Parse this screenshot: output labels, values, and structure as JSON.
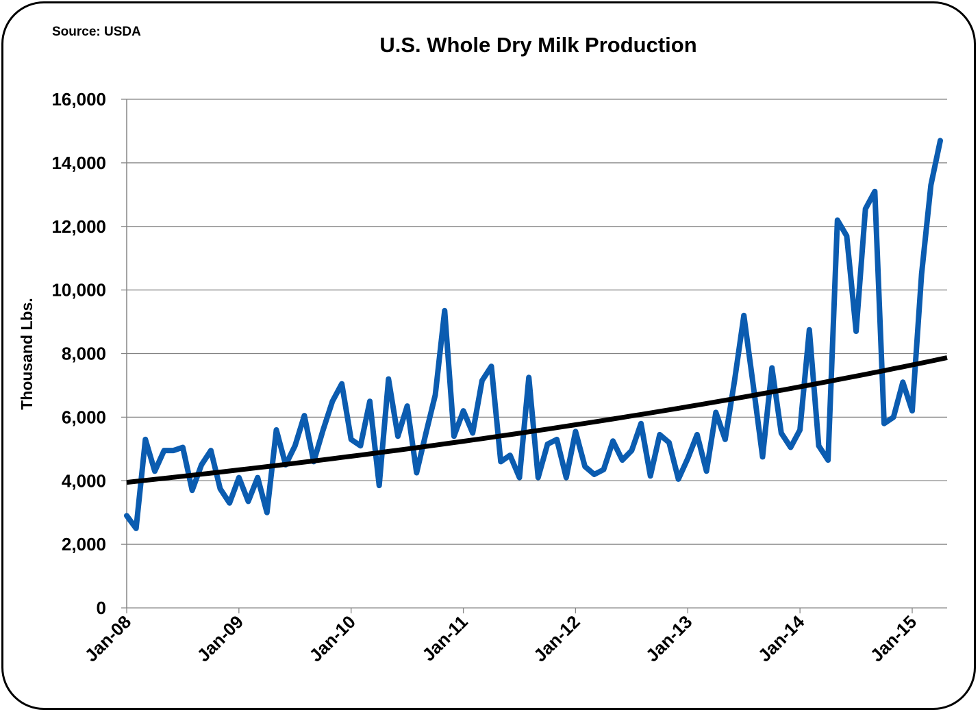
{
  "chart_data": {
    "type": "line",
    "title": "U.S. Whole Dry Milk Production",
    "source_note": "Source: USDA",
    "xlabel": "",
    "ylabel": "Thousand Lbs.",
    "ylim": [
      0,
      16000
    ],
    "yticks": [
      "0",
      "2,000",
      "4,000",
      "6,000",
      "8,000",
      "10,000",
      "12,000",
      "14,000",
      "16,000"
    ],
    "ytick_values": [
      0,
      2000,
      4000,
      6000,
      8000,
      10000,
      12000,
      14000,
      16000
    ],
    "xticks": [
      "Jan-08",
      "Jan-09",
      "Jan-10",
      "Jan-11",
      "Jan-12",
      "Jan-13",
      "Jan-14",
      "Jan-15"
    ],
    "x_start": "2008-01",
    "x_end": "2015-04",
    "grid": "horizontal",
    "series": [
      {
        "type": "monthly",
        "color": "#0b5cb0",
        "values": [
          2900,
          2500,
          5300,
          4300,
          4950,
          4950,
          5050,
          3700,
          4500,
          4950,
          3750,
          3300,
          4100,
          3350,
          4100,
          3000,
          5600,
          4500,
          5100,
          6050,
          4600,
          5600,
          6500,
          7050,
          5300,
          5100,
          6500,
          3850,
          7200,
          5400,
          6350,
          4250,
          5500,
          6700,
          9350,
          5400,
          6200,
          5500,
          7150,
          7600,
          4600,
          4800,
          4100,
          7250,
          4100,
          5150,
          5300,
          4100,
          5550,
          4450,
          4200,
          4350,
          5250,
          4650,
          4950,
          5800,
          4150,
          5450,
          5200,
          4050,
          4700,
          5450,
          4300,
          6150,
          5300,
          7150,
          9200,
          7000,
          4750,
          7550,
          5500,
          5050,
          5600,
          8750,
          5100,
          4650,
          12200,
          11700,
          8700,
          12550,
          13100,
          5800,
          6000,
          7100,
          6200,
          10500,
          13300,
          14700
        ]
      },
      {
        "type": "exponential-trendline",
        "color": "#000000",
        "start_value": 3950,
        "end_value": 7870
      }
    ]
  }
}
